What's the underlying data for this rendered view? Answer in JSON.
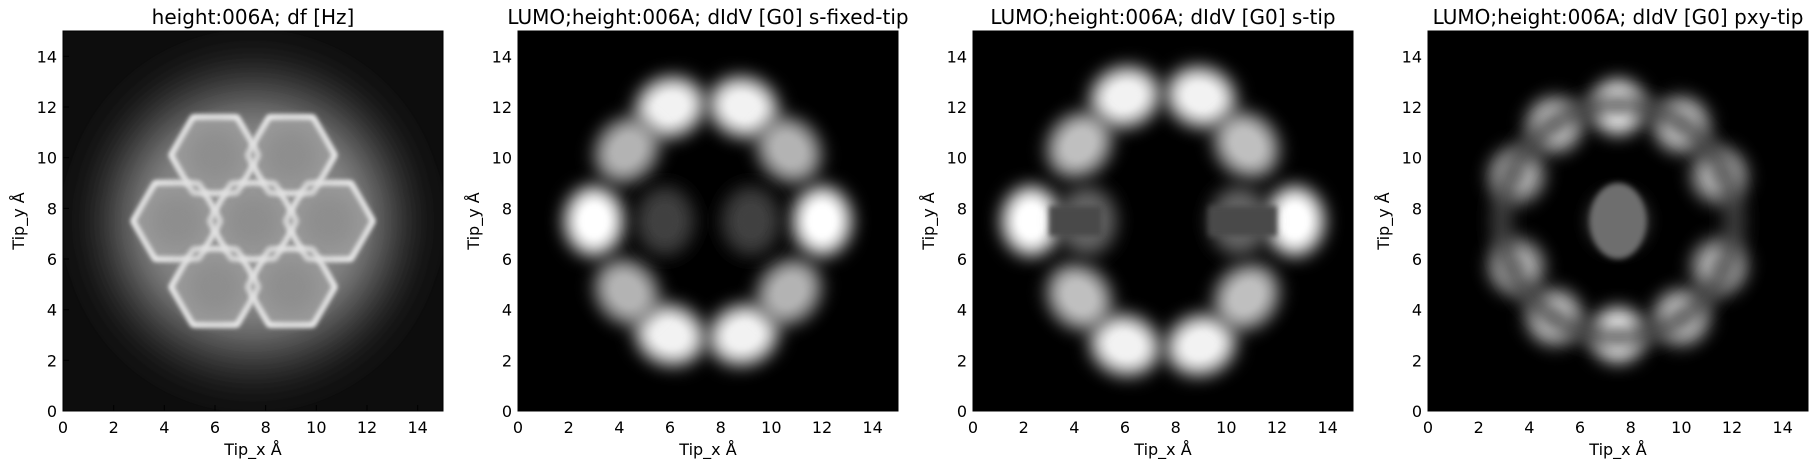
{
  "chart_data": [
    {
      "type": "heatmap",
      "title": "height:006A; df [Hz]",
      "xlabel": "Tip_x Å",
      "ylabel": "Tip_y Å",
      "xlim": [
        0,
        15
      ],
      "ylim": [
        0,
        15
      ],
      "xticks": [
        0,
        2,
        4,
        6,
        8,
        10,
        12,
        14
      ],
      "yticks": [
        0,
        2,
        4,
        6,
        8,
        10,
        12,
        14
      ],
      "colormap": "gray",
      "grid": false,
      "pattern": "coronene hexagonal rings: 7 hexagons (center ring at (7.5, 7.5), six surrounding rings), bright edges, gray interiors",
      "hexagon_centers": [
        [
          7.5,
          7.5
        ],
        [
          6.0,
          10.1
        ],
        [
          9.0,
          10.1
        ],
        [
          4.5,
          7.5
        ],
        [
          10.5,
          7.5
        ],
        [
          6.0,
          4.9
        ],
        [
          9.0,
          4.9
        ]
      ]
    },
    {
      "type": "heatmap",
      "title": "LUMO;height:006A; dIdV [G0] s-fixed-tip",
      "xlabel": "Tip_x Å",
      "ylabel": "Tip_y Å",
      "xlim": [
        0,
        15
      ],
      "ylim": [
        0,
        15
      ],
      "xticks": [
        0,
        2,
        4,
        6,
        8,
        10,
        12,
        14
      ],
      "yticks": [
        0,
        2,
        4,
        6,
        8,
        10,
        12,
        14
      ],
      "colormap": "gray",
      "grid": false,
      "bright_lobes": [
        {
          "x": 3.0,
          "y": 7.5,
          "intensity": 1.0
        },
        {
          "x": 12.0,
          "y": 7.5,
          "intensity": 1.0
        },
        {
          "x": 6.0,
          "y": 12.0,
          "intensity": 0.95
        },
        {
          "x": 8.9,
          "y": 12.0,
          "intensity": 0.95
        },
        {
          "x": 6.0,
          "y": 3.0,
          "intensity": 0.95
        },
        {
          "x": 8.9,
          "y": 3.0,
          "intensity": 0.95
        },
        {
          "x": 4.3,
          "y": 10.3,
          "intensity": 0.7
        },
        {
          "x": 10.7,
          "y": 10.3,
          "intensity": 0.7
        },
        {
          "x": 4.3,
          "y": 4.7,
          "intensity": 0.7
        },
        {
          "x": 10.7,
          "y": 4.7,
          "intensity": 0.7
        },
        {
          "x": 5.8,
          "y": 7.5,
          "intensity": 0.25
        },
        {
          "x": 9.2,
          "y": 7.5,
          "intensity": 0.25
        }
      ]
    },
    {
      "type": "heatmap",
      "title": "LUMO;height:006A; dIdV [G0] s-tip",
      "xlabel": "Tip_x Å",
      "ylabel": "Tip_y Å",
      "xlim": [
        0,
        15
      ],
      "ylim": [
        0,
        15
      ],
      "xticks": [
        0,
        2,
        4,
        6,
        8,
        10,
        12,
        14
      ],
      "yticks": [
        0,
        2,
        4,
        6,
        8,
        10,
        12,
        14
      ],
      "colormap": "gray",
      "grid": false,
      "bright_lobes": [
        {
          "x": 2.3,
          "y": 7.5,
          "intensity": 1.0
        },
        {
          "x": 12.7,
          "y": 7.5,
          "intensity": 1.0
        },
        {
          "x": 6.0,
          "y": 12.4,
          "intensity": 0.95
        },
        {
          "x": 9.0,
          "y": 12.4,
          "intensity": 0.95
        },
        {
          "x": 6.0,
          "y": 2.6,
          "intensity": 0.95
        },
        {
          "x": 9.0,
          "y": 2.6,
          "intensity": 0.95
        },
        {
          "x": 4.2,
          "y": 10.5,
          "intensity": 0.75
        },
        {
          "x": 10.8,
          "y": 10.5,
          "intensity": 0.75
        },
        {
          "x": 4.2,
          "y": 4.5,
          "intensity": 0.75
        },
        {
          "x": 10.8,
          "y": 4.5,
          "intensity": 0.75
        },
        {
          "x": 4.5,
          "y": 7.5,
          "intensity": 0.4
        },
        {
          "x": 10.5,
          "y": 7.5,
          "intensity": 0.4
        }
      ]
    },
    {
      "type": "heatmap",
      "title": "LUMO;height:006A; dIdV [G0] pxy-tip",
      "xlabel": "Tip_x Å",
      "ylabel": "Tip_y Å",
      "xlim": [
        0,
        15
      ],
      "ylim": [
        0,
        15
      ],
      "xticks": [
        0,
        2,
        4,
        6,
        8,
        10,
        12,
        14
      ],
      "yticks": [
        0,
        2,
        4,
        6,
        8,
        10,
        12,
        14
      ],
      "colormap": "gray",
      "grid": false,
      "bright_lobes": [
        {
          "x": 7.5,
          "y": 12.0,
          "intensity": 1.0
        },
        {
          "x": 7.5,
          "y": 3.0,
          "intensity": 1.0
        },
        {
          "x": 5.0,
          "y": 11.3,
          "intensity": 0.8
        },
        {
          "x": 10.0,
          "y": 11.3,
          "intensity": 0.8
        },
        {
          "x": 5.0,
          "y": 3.7,
          "intensity": 0.8
        },
        {
          "x": 10.0,
          "y": 3.7,
          "intensity": 0.8
        },
        {
          "x": 3.5,
          "y": 9.3,
          "intensity": 0.7
        },
        {
          "x": 11.5,
          "y": 9.3,
          "intensity": 0.7
        },
        {
          "x": 3.5,
          "y": 5.7,
          "intensity": 0.7
        },
        {
          "x": 11.5,
          "y": 5.7,
          "intensity": 0.7
        },
        {
          "x": 7.5,
          "y": 7.5,
          "intensity": 0.45
        }
      ]
    }
  ]
}
